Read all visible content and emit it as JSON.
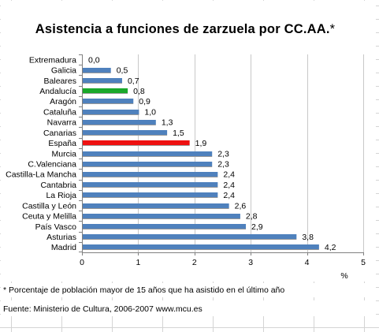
{
  "chart_data": {
    "type": "bar",
    "orientation": "horizontal",
    "title": "Asistencia a funciones de zarzuela por CC.AA.",
    "title_marker": "*",
    "xlabel": "%",
    "ylabel": "",
    "xlim": [
      0,
      5
    ],
    "x_ticks": [
      "0",
      "1",
      "2",
      "3",
      "4",
      "5"
    ],
    "grid": "vertical",
    "bar_color": "#4f81bd",
    "categories": [
      "Extremadura",
      "Galicia",
      "Baleares",
      "Andalucía",
      "Aragón",
      "Cataluña",
      "Navarra",
      "Canarias",
      "España",
      "Murcia",
      "C.Valenciana",
      "Castilla-La Mancha",
      "Cantabria",
      "La Rioja",
      "Castilla y León",
      "Ceuta y Melilla",
      "País Vasco",
      "Asturias",
      "Madrid"
    ],
    "values": [
      0.0,
      0.5,
      0.7,
      0.8,
      0.9,
      1.0,
      1.3,
      1.5,
      1.9,
      2.3,
      2.3,
      2.4,
      2.4,
      2.4,
      2.6,
      2.8,
      2.9,
      3.8,
      4.2
    ],
    "value_labels": [
      "0,0",
      "0,5",
      "0,7",
      "0,8",
      "0,9",
      "1,0",
      "1,3",
      "1,5",
      "1,9",
      "2,3",
      "2,3",
      "2,4",
      "2,4",
      "2,4",
      "2,6",
      "2,8",
      "2,9",
      "3,8",
      "4,2"
    ],
    "highlights": {
      "Andalucía": "#1aa82a",
      "España": "#ee1111"
    }
  },
  "footnote": "* Porcentaje de población mayor de 15 años que ha asistido en el último año",
  "source": "Fuente: Ministerio de Cultura, 2006-2007   www.mcu.es"
}
